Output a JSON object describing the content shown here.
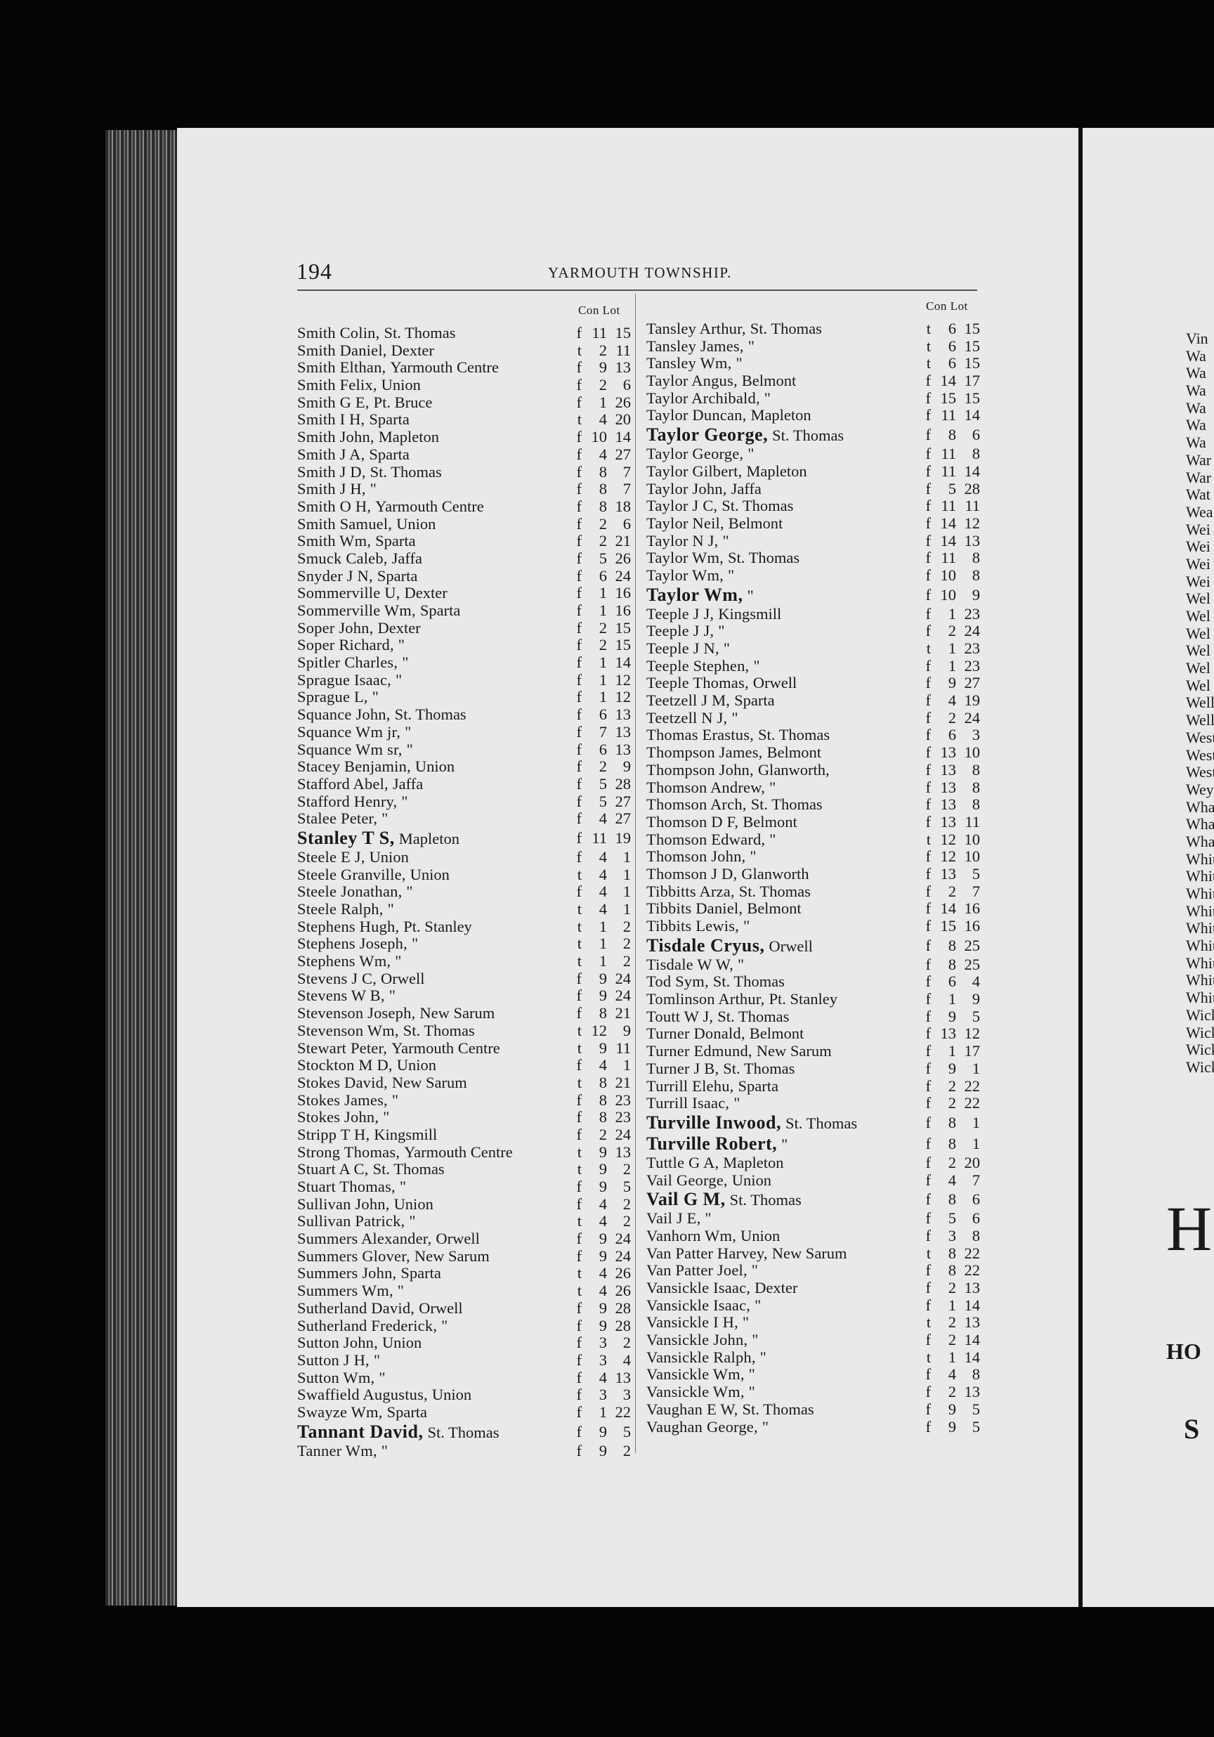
{
  "header": {
    "page_number": "194",
    "running_title": "YARMOUTH TOWNSHIP."
  },
  "column_headers": {
    "con_lot": "Con Lot"
  },
  "left_entries": [
    {
      "name": "Smith Colin,",
      "place": "St. Thomas",
      "tenure": "f",
      "con": "11",
      "lot": "15"
    },
    {
      "name": "Smith Daniel,",
      "place": "Dexter",
      "tenure": "t",
      "con": "2",
      "lot": "11"
    },
    {
      "name": "Smith Elthan,",
      "place": "Yarmouth Centre",
      "tenure": "f",
      "con": "9",
      "lot": "13"
    },
    {
      "name": "Smith Felix,",
      "place": "Union",
      "tenure": "f",
      "con": "2",
      "lot": "6"
    },
    {
      "name": "Smith G E,",
      "place": "Pt. Bruce",
      "tenure": "f",
      "con": "1",
      "lot": "26"
    },
    {
      "name": "Smith I H,",
      "place": "Sparta",
      "tenure": "t",
      "con": "4",
      "lot": "20"
    },
    {
      "name": "Smith John,",
      "place": "Mapleton",
      "tenure": "f",
      "con": "10",
      "lot": "14"
    },
    {
      "name": "Smith J A,",
      "place": "Sparta",
      "tenure": "f",
      "con": "4",
      "lot": "27"
    },
    {
      "name": "Smith J D,",
      "place": "St. Thomas",
      "tenure": "f",
      "con": "8",
      "lot": "7"
    },
    {
      "name": "Smith J H,",
      "place": "\"",
      "tenure": "f",
      "con": "8",
      "lot": "7"
    },
    {
      "name": "Smith O H,",
      "place": "Yarmouth Centre",
      "tenure": "f",
      "con": "8",
      "lot": "18"
    },
    {
      "name": "Smith Samuel,",
      "place": "Union",
      "tenure": "f",
      "con": "2",
      "lot": "6"
    },
    {
      "name": "Smith Wm,",
      "place": "Sparta",
      "tenure": "f",
      "con": "2",
      "lot": "21"
    },
    {
      "name": "Smuck Caleb,",
      "place": "Jaffa",
      "tenure": "f",
      "con": "5",
      "lot": "26"
    },
    {
      "name": "Snyder J N,",
      "place": "Sparta",
      "tenure": "f",
      "con": "6",
      "lot": "24"
    },
    {
      "name": "Sommerville U,",
      "place": "Dexter",
      "tenure": "f",
      "con": "1",
      "lot": "16"
    },
    {
      "name": "Sommerville Wm,",
      "place": "Sparta",
      "tenure": "f",
      "con": "1",
      "lot": "16"
    },
    {
      "name": "Soper John,",
      "place": "Dexter",
      "tenure": "f",
      "con": "2",
      "lot": "15"
    },
    {
      "name": "Soper Richard,",
      "place": "\"",
      "tenure": "f",
      "con": "2",
      "lot": "15"
    },
    {
      "name": "Spitler Charles,",
      "place": "\"",
      "tenure": "f",
      "con": "1",
      "lot": "14"
    },
    {
      "name": "Sprague Isaac,",
      "place": "\"",
      "tenure": "f",
      "con": "1",
      "lot": "12"
    },
    {
      "name": "Sprague L,",
      "place": "\"",
      "tenure": "f",
      "con": "1",
      "lot": "12"
    },
    {
      "name": "Squance John,",
      "place": "St. Thomas",
      "tenure": "f",
      "con": "6",
      "lot": "13"
    },
    {
      "name": "Squance Wm jr,",
      "place": "\"",
      "tenure": "f",
      "con": "7",
      "lot": "13"
    },
    {
      "name": "Squance Wm sr,",
      "place": "\"",
      "tenure": "f",
      "con": "6",
      "lot": "13"
    },
    {
      "name": "Stacey Benjamin,",
      "place": "Union",
      "tenure": "f",
      "con": "2",
      "lot": "9"
    },
    {
      "name": "Stafford Abel,",
      "place": "Jaffa",
      "tenure": "f",
      "con": "5",
      "lot": "28"
    },
    {
      "name": "Stafford Henry,",
      "place": "\"",
      "tenure": "f",
      "con": "5",
      "lot": "27"
    },
    {
      "name": "Stalee Peter,",
      "place": "\"",
      "tenure": "f",
      "con": "4",
      "lot": "27"
    },
    {
      "name": "Stanley T S,",
      "place": "Mapleton",
      "tenure": "f",
      "con": "11",
      "lot": "19",
      "bold": true
    },
    {
      "name": "Steele E J,",
      "place": "Union",
      "tenure": "f",
      "con": "4",
      "lot": "1"
    },
    {
      "name": "Steele Granville,",
      "place": "Union",
      "tenure": "t",
      "con": "4",
      "lot": "1"
    },
    {
      "name": "Steele Jonathan,",
      "place": "\"",
      "tenure": "f",
      "con": "4",
      "lot": "1"
    },
    {
      "name": "Steele Ralph,",
      "place": "\"",
      "tenure": "t",
      "con": "4",
      "lot": "1"
    },
    {
      "name": "Stephens Hugh,",
      "place": "Pt. Stanley",
      "tenure": "t",
      "con": "1",
      "lot": "2"
    },
    {
      "name": "Stephens Joseph,",
      "place": "\"",
      "tenure": "t",
      "con": "1",
      "lot": "2"
    },
    {
      "name": "Stephens Wm,",
      "place": "\"",
      "tenure": "t",
      "con": "1",
      "lot": "2"
    },
    {
      "name": "Stevens J C,",
      "place": "Orwell",
      "tenure": "f",
      "con": "9",
      "lot": "24"
    },
    {
      "name": "Stevens W B,",
      "place": "\"",
      "tenure": "f",
      "con": "9",
      "lot": "24"
    },
    {
      "name": "Stevenson Joseph,",
      "place": "New Sarum",
      "tenure": "f",
      "con": "8",
      "lot": "21"
    },
    {
      "name": "Stevenson Wm,",
      "place": "St. Thomas",
      "tenure": "t",
      "con": "12",
      "lot": "9"
    },
    {
      "name": "Stewart Peter,",
      "place": "Yarmouth Centre",
      "tenure": "t",
      "con": "9",
      "lot": "11"
    },
    {
      "name": "Stockton M D,",
      "place": "Union",
      "tenure": "f",
      "con": "4",
      "lot": "1"
    },
    {
      "name": "Stokes David,",
      "place": "New Sarum",
      "tenure": "t",
      "con": "8",
      "lot": "21"
    },
    {
      "name": "Stokes James,",
      "place": "\"",
      "tenure": "f",
      "con": "8",
      "lot": "23"
    },
    {
      "name": "Stokes John,",
      "place": "\"",
      "tenure": "f",
      "con": "8",
      "lot": "23"
    },
    {
      "name": "Stripp T H,",
      "place": "Kingsmill",
      "tenure": "f",
      "con": "2",
      "lot": "24"
    },
    {
      "name": "Strong Thomas,",
      "place": "Yarmouth Centre",
      "tenure": "t",
      "con": "9",
      "lot": "13"
    },
    {
      "name": "Stuart A C,",
      "place": "St. Thomas",
      "tenure": "t",
      "con": "9",
      "lot": "2"
    },
    {
      "name": "Stuart Thomas,",
      "place": "\"",
      "tenure": "f",
      "con": "9",
      "lot": "5"
    },
    {
      "name": "Sullivan John,",
      "place": "Union",
      "tenure": "f",
      "con": "4",
      "lot": "2"
    },
    {
      "name": "Sullivan Patrick,",
      "place": "\"",
      "tenure": "t",
      "con": "4",
      "lot": "2"
    },
    {
      "name": "Summers Alexander,",
      "place": "Orwell",
      "tenure": "f",
      "con": "9",
      "lot": "24"
    },
    {
      "name": "Summers Glover,",
      "place": "New Sarum",
      "tenure": "f",
      "con": "9",
      "lot": "24"
    },
    {
      "name": "Summers John,",
      "place": "Sparta",
      "tenure": "t",
      "con": "4",
      "lot": "26"
    },
    {
      "name": "Summers Wm,",
      "place": "\"",
      "tenure": "t",
      "con": "4",
      "lot": "26"
    },
    {
      "name": "Sutherland David,",
      "place": "Orwell",
      "tenure": "f",
      "con": "9",
      "lot": "28"
    },
    {
      "name": "Sutherland Frederick,",
      "place": "\"",
      "tenure": "f",
      "con": "9",
      "lot": "28"
    },
    {
      "name": "Sutton John,",
      "place": "Union",
      "tenure": "f",
      "con": "3",
      "lot": "2"
    },
    {
      "name": "Sutton J H,",
      "place": "\"",
      "tenure": "f",
      "con": "3",
      "lot": "4"
    },
    {
      "name": "Sutton Wm,",
      "place": "\"",
      "tenure": "f",
      "con": "4",
      "lot": "13"
    },
    {
      "name": "Swaffield Augustus,",
      "place": "Union",
      "tenure": "f",
      "con": "3",
      "lot": "3"
    },
    {
      "name": "Swayze Wm,",
      "place": "Sparta",
      "tenure": "f",
      "con": "1",
      "lot": "22"
    },
    {
      "name": "Tannant David,",
      "place": "St. Thomas",
      "tenure": "f",
      "con": "9",
      "lot": "5",
      "bold": true
    },
    {
      "name": "Tanner Wm,",
      "place": "\"",
      "tenure": "f",
      "con": "9",
      "lot": "2"
    }
  ],
  "right_entries": [
    {
      "name": "Tansley Arthur,",
      "place": "St. Thomas",
      "tenure": "t",
      "con": "6",
      "lot": "15"
    },
    {
      "name": "Tansley James,",
      "place": "\"",
      "tenure": "t",
      "con": "6",
      "lot": "15"
    },
    {
      "name": "Tansley Wm,",
      "place": "\"",
      "tenure": "t",
      "con": "6",
      "lot": "15"
    },
    {
      "name": "Taylor Angus,",
      "place": "Belmont",
      "tenure": "f",
      "con": "14",
      "lot": "17"
    },
    {
      "name": "Taylor Archibald,",
      "place": "\"",
      "tenure": "f",
      "con": "15",
      "lot": "15"
    },
    {
      "name": "Taylor Duncan,",
      "place": "Mapleton",
      "tenure": "f",
      "con": "11",
      "lot": "14"
    },
    {
      "name": "Taylor George,",
      "place": "St. Thomas",
      "tenure": "f",
      "con": "8",
      "lot": "6",
      "bold": true
    },
    {
      "name": "Taylor George,",
      "place": "\"",
      "tenure": "f",
      "con": "11",
      "lot": "8"
    },
    {
      "name": "Taylor Gilbert,",
      "place": "Mapleton",
      "tenure": "f",
      "con": "11",
      "lot": "14"
    },
    {
      "name": "Taylor John,",
      "place": "Jaffa",
      "tenure": "f",
      "con": "5",
      "lot": "28"
    },
    {
      "name": "Taylor J C,",
      "place": "St. Thomas",
      "tenure": "f",
      "con": "11",
      "lot": "11"
    },
    {
      "name": "Taylor Neil,",
      "place": "Belmont",
      "tenure": "f",
      "con": "14",
      "lot": "12"
    },
    {
      "name": "Taylor N J,",
      "place": "\"",
      "tenure": "f",
      "con": "14",
      "lot": "13"
    },
    {
      "name": "Taylor Wm,",
      "place": "St. Thomas",
      "tenure": "f",
      "con": "11",
      "lot": "8"
    },
    {
      "name": "Taylor Wm,",
      "place": "\"",
      "tenure": "f",
      "con": "10",
      "lot": "8"
    },
    {
      "name": "Taylor Wm,",
      "place": "\"",
      "tenure": "f",
      "con": "10",
      "lot": "9",
      "bold": true
    },
    {
      "name": "Teeple J J,",
      "place": "Kingsmill",
      "tenure": "f",
      "con": "1",
      "lot": "23"
    },
    {
      "name": "Teeple J J,",
      "place": "\"",
      "tenure": "f",
      "con": "2",
      "lot": "24"
    },
    {
      "name": "Teeple J N,",
      "place": "\"",
      "tenure": "t",
      "con": "1",
      "lot": "23"
    },
    {
      "name": "Teeple Stephen,",
      "place": "\"",
      "tenure": "f",
      "con": "1",
      "lot": "23"
    },
    {
      "name": "Teeple Thomas,",
      "place": "Orwell",
      "tenure": "f",
      "con": "9",
      "lot": "27"
    },
    {
      "name": "Teetzell J M,",
      "place": "Sparta",
      "tenure": "f",
      "con": "4",
      "lot": "19"
    },
    {
      "name": "Teetzell N J,",
      "place": "\"",
      "tenure": "f",
      "con": "2",
      "lot": "24"
    },
    {
      "name": "Thomas Erastus,",
      "place": "St. Thomas",
      "tenure": "f",
      "con": "6",
      "lot": "3"
    },
    {
      "name": "Thompson James,",
      "place": "Belmont",
      "tenure": "f",
      "con": "13",
      "lot": "10"
    },
    {
      "name": "Thompson John,",
      "place": "Glanworth,",
      "tenure": "f",
      "con": "13",
      "lot": "8"
    },
    {
      "name": "Thomson Andrew,",
      "place": "\"",
      "tenure": "f",
      "con": "13",
      "lot": "8"
    },
    {
      "name": "Thomson Arch,",
      "place": "St. Thomas",
      "tenure": "f",
      "con": "13",
      "lot": "8"
    },
    {
      "name": "Thomson D F,",
      "place": "Belmont",
      "tenure": "f",
      "con": "13",
      "lot": "11"
    },
    {
      "name": "Thomson Edward,",
      "place": "\"",
      "tenure": "t",
      "con": "12",
      "lot": "10"
    },
    {
      "name": "Thomson John,",
      "place": "\"",
      "tenure": "f",
      "con": "12",
      "lot": "10"
    },
    {
      "name": "Thomson J D,",
      "place": "Glanworth",
      "tenure": "f",
      "con": "13",
      "lot": "5"
    },
    {
      "name": "Tibbitts Arza,",
      "place": "St. Thomas",
      "tenure": "f",
      "con": "2",
      "lot": "7"
    },
    {
      "name": "Tibbits Daniel,",
      "place": "Belmont",
      "tenure": "f",
      "con": "14",
      "lot": "16"
    },
    {
      "name": "Tibbits Lewis,",
      "place": "\"",
      "tenure": "f",
      "con": "15",
      "lot": "16"
    },
    {
      "name": "Tisdale Cryus,",
      "place": "Orwell",
      "tenure": "f",
      "con": "8",
      "lot": "25",
      "bold": true
    },
    {
      "name": "Tisdale W W,",
      "place": "\"",
      "tenure": "f",
      "con": "8",
      "lot": "25"
    },
    {
      "name": "Tod Sym,",
      "place": "St. Thomas",
      "tenure": "f",
      "con": "6",
      "lot": "4"
    },
    {
      "name": "Tomlinson Arthur,",
      "place": "Pt. Stanley",
      "tenure": "f",
      "con": "1",
      "lot": "9"
    },
    {
      "name": "Toutt W J,",
      "place": "St. Thomas",
      "tenure": "f",
      "con": "9",
      "lot": "5"
    },
    {
      "name": "Turner Donald,",
      "place": "Belmont",
      "tenure": "f",
      "con": "13",
      "lot": "12"
    },
    {
      "name": "Turner Edmund,",
      "place": "New Sarum",
      "tenure": "f",
      "con": "1",
      "lot": "17"
    },
    {
      "name": "Turner J B,",
      "place": "St. Thomas",
      "tenure": "f",
      "con": "9",
      "lot": "1"
    },
    {
      "name": "Turrill Elehu,",
      "place": "Sparta",
      "tenure": "f",
      "con": "2",
      "lot": "22"
    },
    {
      "name": "Turrill Isaac,",
      "place": "\"",
      "tenure": "f",
      "con": "2",
      "lot": "22"
    },
    {
      "name": "Turville Inwood,",
      "place": "St. Thomas",
      "tenure": "f",
      "con": "8",
      "lot": "1",
      "bold": true
    },
    {
      "name": "Turville Robert,",
      "place": "\"",
      "tenure": "f",
      "con": "8",
      "lot": "1",
      "bold": true
    },
    {
      "name": "Tuttle G A,",
      "place": "Mapleton",
      "tenure": "f",
      "con": "2",
      "lot": "20"
    },
    {
      "name": "Vail George,",
      "place": "Union",
      "tenure": "f",
      "con": "4",
      "lot": "7"
    },
    {
      "name": "Vail G M,",
      "place": "St. Thomas",
      "tenure": "f",
      "con": "8",
      "lot": "6",
      "bold": true
    },
    {
      "name": "Vail J E,",
      "place": "\"",
      "tenure": "f",
      "con": "5",
      "lot": "6"
    },
    {
      "name": "Vanhorn Wm,",
      "place": "Union",
      "tenure": "f",
      "con": "3",
      "lot": "8"
    },
    {
      "name": "Van Patter Harvey,",
      "place": "New Sarum",
      "tenure": "t",
      "con": "8",
      "lot": "22"
    },
    {
      "name": "Van Patter Joel,",
      "place": "\"",
      "tenure": "f",
      "con": "8",
      "lot": "22"
    },
    {
      "name": "Vansickle Isaac,",
      "place": "Dexter",
      "tenure": "f",
      "con": "2",
      "lot": "13"
    },
    {
      "name": "Vansickle Isaac,",
      "place": "\"",
      "tenure": "f",
      "con": "1",
      "lot": "14"
    },
    {
      "name": "Vansickle I H,",
      "place": "\"",
      "tenure": "t",
      "con": "2",
      "lot": "13"
    },
    {
      "name": "Vansickle John,",
      "place": "\"",
      "tenure": "f",
      "con": "2",
      "lot": "14"
    },
    {
      "name": "Vansickle Ralph,",
      "place": "\"",
      "tenure": "t",
      "con": "1",
      "lot": "14"
    },
    {
      "name": "Vansickle Wm,",
      "place": "\"",
      "tenure": "f",
      "con": "4",
      "lot": "8"
    },
    {
      "name": "Vansickle Wm,",
      "place": "\"",
      "tenure": "f",
      "con": "2",
      "lot": "13"
    },
    {
      "name": "Vaughan E W,",
      "place": "St. Thomas",
      "tenure": "f",
      "con": "9",
      "lot": "5"
    },
    {
      "name": "Vaughan George,",
      "place": "\"",
      "tenure": "f",
      "con": "9",
      "lot": "5"
    }
  ],
  "adjacent_page": {
    "fragments": [
      "Vin",
      "Wa",
      "Wa",
      "Wa",
      "Wa",
      "Wa",
      "Wa",
      "War",
      "War",
      "Wat",
      "Wea",
      "Wei",
      "Wei",
      "Wei",
      "Wei",
      "Wel",
      "Wel",
      "Wel",
      "Wel",
      "Wel",
      "Wel",
      "Well",
      "Well",
      "West",
      "West",
      "West",
      "Weyl",
      "Wha",
      "Whal",
      "Whal",
      "Whit",
      "Whit",
      "Whit",
      "Whit",
      "Whit",
      "Whit",
      "White",
      "White",
      "White",
      "Wick",
      "Wick",
      "Wick",
      "Wick"
    ],
    "large_letter": "H",
    "bold_fragment": "HO",
    "bottom_fragment": "S"
  }
}
